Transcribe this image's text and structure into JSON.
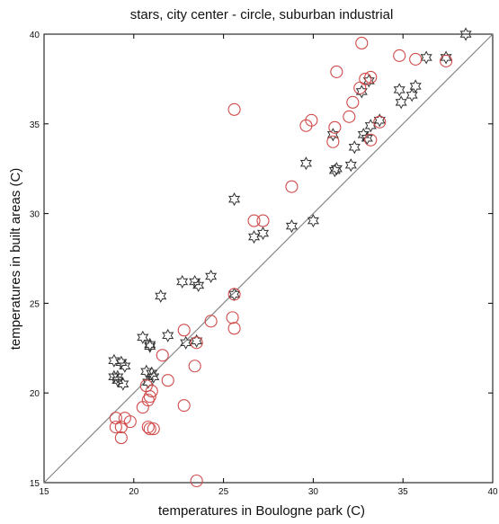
{
  "chart_data": {
    "type": "scatter",
    "title": "stars, city center -  circle, suburban industrial",
    "xlabel": "temperatures in Boulogne park (C)",
    "ylabel": "temperatures in built areas (C)",
    "xlim": [
      15,
      40
    ],
    "ylim": [
      15,
      40
    ],
    "xticks": [
      "15",
      "20",
      "25",
      "30",
      "35",
      "40"
    ],
    "yticks": [
      "15",
      "20",
      "25",
      "30",
      "35",
      "40"
    ],
    "grid": false,
    "reference_line": {
      "from": [
        15,
        15
      ],
      "to": [
        40,
        40
      ],
      "color": "#888888"
    },
    "series": [
      {
        "marker": "star",
        "color": "#333333",
        "points": [
          [
            38.5,
            40.0
          ],
          [
            37.4,
            38.7
          ],
          [
            36.3,
            38.7
          ],
          [
            35.7,
            37.1
          ],
          [
            35.5,
            36.6
          ],
          [
            34.8,
            36.9
          ],
          [
            34.9,
            36.2
          ],
          [
            33.7,
            35.2
          ],
          [
            33.2,
            34.9
          ],
          [
            32.8,
            34.4
          ],
          [
            33.0,
            34.2
          ],
          [
            32.7,
            36.8
          ],
          [
            33.1,
            37.4
          ],
          [
            32.3,
            33.7
          ],
          [
            32.1,
            32.7
          ],
          [
            31.3,
            32.5
          ],
          [
            31.2,
            32.4
          ],
          [
            31.1,
            34.4
          ],
          [
            29.6,
            32.8
          ],
          [
            30.0,
            29.6
          ],
          [
            28.8,
            29.3
          ],
          [
            27.2,
            28.9
          ],
          [
            26.7,
            28.7
          ],
          [
            25.6,
            30.8
          ],
          [
            25.6,
            25.5
          ],
          [
            24.3,
            26.5
          ],
          [
            23.4,
            26.2
          ],
          [
            23.6,
            26.0
          ],
          [
            22.7,
            26.2
          ],
          [
            21.5,
            25.4
          ],
          [
            22.9,
            22.8
          ],
          [
            23.5,
            22.9
          ],
          [
            21.9,
            23.2
          ],
          [
            20.9,
            22.6
          ],
          [
            20.9,
            22.7
          ],
          [
            20.5,
            23.1
          ],
          [
            20.7,
            21.2
          ],
          [
            21.0,
            21.1
          ],
          [
            19.5,
            21.5
          ],
          [
            18.9,
            21.8
          ],
          [
            19.3,
            21.7
          ],
          [
            19.1,
            20.7
          ],
          [
            19.4,
            20.5
          ],
          [
            19.1,
            20.9
          ],
          [
            18.9,
            20.9
          ],
          [
            20.8,
            20.6
          ],
          [
            21.1,
            20.9
          ]
        ]
      },
      {
        "marker": "circle",
        "color": "#d04a4a",
        "points": [
          [
            32.7,
            39.5
          ],
          [
            34.8,
            38.8
          ],
          [
            35.7,
            38.6
          ],
          [
            37.4,
            38.5
          ],
          [
            31.3,
            37.9
          ],
          [
            32.9,
            37.5
          ],
          [
            33.2,
            37.6
          ],
          [
            32.6,
            37.0
          ],
          [
            32.2,
            36.2
          ],
          [
            32.0,
            35.4
          ],
          [
            31.2,
            34.8
          ],
          [
            33.7,
            35.1
          ],
          [
            33.2,
            34.1
          ],
          [
            31.1,
            34.0
          ],
          [
            29.9,
            35.2
          ],
          [
            29.6,
            34.9
          ],
          [
            25.6,
            35.8
          ],
          [
            28.8,
            31.5
          ],
          [
            26.7,
            29.6
          ],
          [
            27.2,
            29.6
          ],
          [
            25.6,
            25.5
          ],
          [
            24.3,
            24.0
          ],
          [
            25.5,
            24.2
          ],
          [
            25.6,
            23.6
          ],
          [
            22.8,
            23.5
          ],
          [
            23.5,
            22.8
          ],
          [
            23.4,
            21.5
          ],
          [
            21.6,
            22.1
          ],
          [
            21.9,
            20.7
          ],
          [
            20.7,
            20.4
          ],
          [
            21.0,
            20.1
          ],
          [
            20.9,
            19.8
          ],
          [
            20.5,
            19.2
          ],
          [
            20.8,
            19.6
          ],
          [
            22.8,
            19.3
          ],
          [
            19.0,
            18.6
          ],
          [
            19.5,
            18.6
          ],
          [
            19.8,
            18.4
          ],
          [
            19.3,
            18.1
          ],
          [
            19.0,
            18.1
          ],
          [
            19.3,
            17.5
          ],
          [
            20.8,
            18.1
          ],
          [
            20.9,
            18.0
          ],
          [
            21.1,
            18.0
          ],
          [
            23.5,
            15.1
          ]
        ]
      }
    ]
  }
}
